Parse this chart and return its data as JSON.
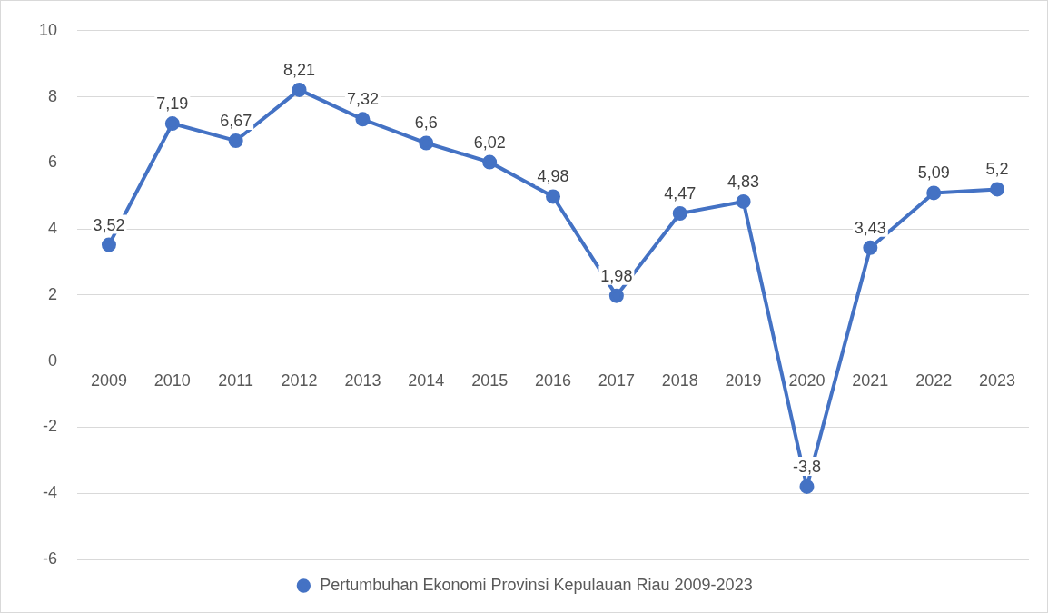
{
  "chart_data": {
    "type": "line",
    "categories": [
      "2009",
      "2010",
      "2011",
      "2012",
      "2013",
      "2014",
      "2015",
      "2016",
      "2017",
      "2018",
      "2019",
      "2020",
      "2021",
      "2022",
      "2023"
    ],
    "series": [
      {
        "name": "Pertumbuhan Ekonomi Provinsi Kepulauan Riau 2009-2023",
        "color": "#4472c4",
        "values": [
          3.52,
          7.19,
          6.67,
          8.21,
          7.32,
          6.6,
          6.02,
          4.98,
          1.98,
          4.47,
          4.83,
          -3.8,
          3.43,
          5.09,
          5.2
        ],
        "value_labels": [
          "3,52",
          "7,19",
          "6,67",
          "8,21",
          "7,32",
          "6,6",
          "6,02",
          "4,98",
          "1,98",
          "4,47",
          "4,83",
          "-3,8",
          "3,43",
          "5,09",
          "5,2"
        ]
      }
    ],
    "ylim": [
      -6,
      10
    ],
    "yticks": [
      -6,
      -4,
      -2,
      0,
      2,
      4,
      6,
      8,
      10
    ],
    "grid": "y",
    "legend": "bottom",
    "marker": "circle",
    "line_style": "solid"
  }
}
